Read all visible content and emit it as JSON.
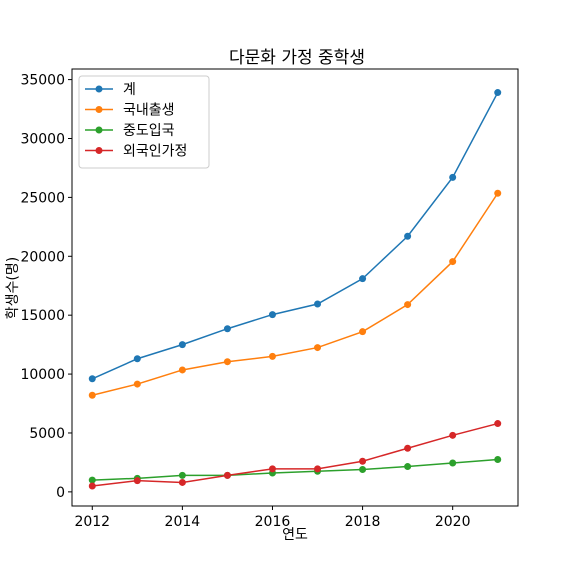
{
  "chart_data": {
    "type": "line",
    "title": "다문화 가정 중학생",
    "xlabel": "연도",
    "ylabel": "학생수(명)",
    "x": [
      2012,
      2013,
      2014,
      2015,
      2016,
      2017,
      2018,
      2019,
      2020,
      2021
    ],
    "xticks": [
      2012,
      2014,
      2016,
      2018,
      2020
    ],
    "yticks": [
      0,
      5000,
      10000,
      15000,
      20000,
      25000,
      30000,
      35000
    ],
    "xlim": [
      2011.55,
      2021.45
    ],
    "ylim": [
      -1200,
      35900
    ],
    "legend_position": "top-left",
    "grid": false,
    "series": [
      {
        "name": "계",
        "color": "#1f77b4",
        "values": [
          9600,
          11300,
          12500,
          13850,
          15050,
          15950,
          18100,
          21700,
          26700,
          33900
        ]
      },
      {
        "name": "국내출생",
        "color": "#ff7f0e",
        "values": [
          8200,
          9150,
          10350,
          11050,
          11500,
          12250,
          13600,
          15900,
          19550,
          25350
        ]
      },
      {
        "name": "중도입국",
        "color": "#2ca02c",
        "values": [
          1000,
          1150,
          1400,
          1400,
          1600,
          1750,
          1900,
          2150,
          2450,
          2750
        ]
      },
      {
        "name": "외국인가정",
        "color": "#d62728",
        "values": [
          500,
          950,
          800,
          1400,
          1950,
          1950,
          2600,
          3700,
          4800,
          5800
        ]
      }
    ]
  }
}
